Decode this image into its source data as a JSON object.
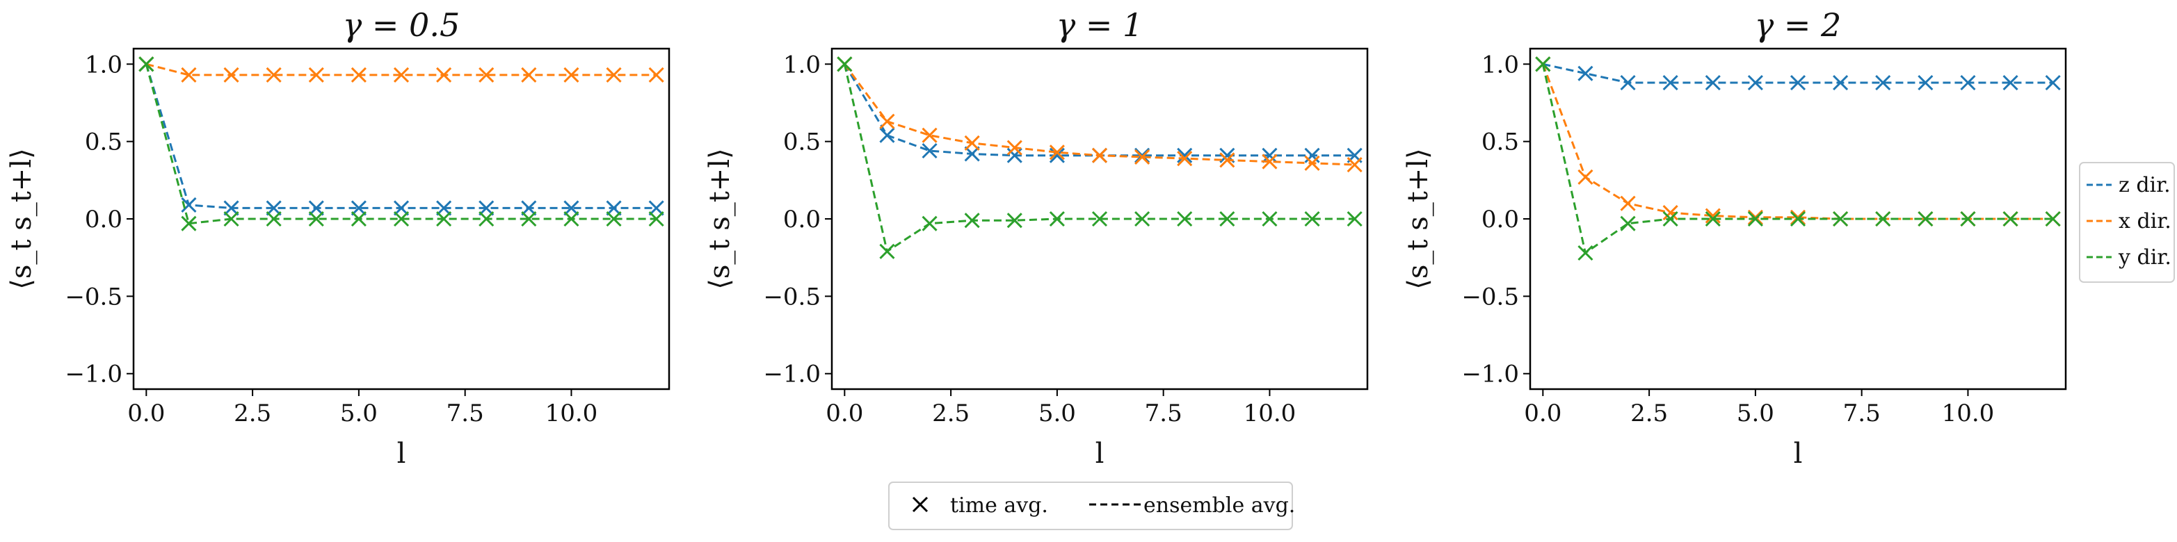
{
  "chart_data": [
    {
      "type": "line",
      "title": "γ = 0.5",
      "xlabel": "l",
      "ylabel": "⟨s_t s_t+l⟩",
      "xlim": [
        -0.3,
        12.3
      ],
      "ylim": [
        -1.1,
        1.1
      ],
      "xticks": [
        0.0,
        2.5,
        5.0,
        7.5,
        10.0
      ],
      "xtick_labels": [
        "0.0",
        "2.5",
        "5.0",
        "7.5",
        "10.0"
      ],
      "yticks": [
        1.0,
        0.5,
        0.0,
        -0.5,
        -1.0
      ],
      "ytick_labels": [
        "1.0",
        "0.5",
        "0.0",
        "−0.5",
        "−1.0"
      ],
      "x": [
        0,
        1,
        2,
        3,
        4,
        5,
        6,
        7,
        8,
        9,
        10,
        11,
        12
      ],
      "series": [
        {
          "name": "z dir.",
          "color": "#1f77b4",
          "values": [
            1.0,
            0.09,
            0.07,
            0.07,
            0.07,
            0.07,
            0.07,
            0.07,
            0.07,
            0.07,
            0.07,
            0.07,
            0.07
          ]
        },
        {
          "name": "x dir.",
          "color": "#ff7f0e",
          "values": [
            1.0,
            0.93,
            0.93,
            0.93,
            0.93,
            0.93,
            0.93,
            0.93,
            0.93,
            0.93,
            0.93,
            0.93,
            0.93
          ]
        },
        {
          "name": "y dir.",
          "color": "#2ca02c",
          "values": [
            1.0,
            -0.03,
            0.0,
            0.0,
            0.0,
            0.0,
            0.0,
            0.0,
            0.0,
            0.0,
            0.0,
            0.0,
            0.0
          ]
        }
      ]
    },
    {
      "type": "line",
      "title": "γ = 1",
      "xlabel": "l",
      "ylabel": "⟨s_t s_t+l⟩",
      "xlim": [
        -0.3,
        12.3
      ],
      "ylim": [
        -1.1,
        1.1
      ],
      "xticks": [
        0.0,
        2.5,
        5.0,
        7.5,
        10.0
      ],
      "xtick_labels": [
        "0.0",
        "2.5",
        "5.0",
        "7.5",
        "10.0"
      ],
      "yticks": [
        1.0,
        0.5,
        0.0,
        -0.5,
        -1.0
      ],
      "ytick_labels": [
        "1.0",
        "0.5",
        "0.0",
        "−0.5",
        "−1.0"
      ],
      "x": [
        0,
        1,
        2,
        3,
        4,
        5,
        6,
        7,
        8,
        9,
        10,
        11,
        12
      ],
      "series": [
        {
          "name": "z dir.",
          "color": "#1f77b4",
          "values": [
            1.0,
            0.54,
            0.44,
            0.42,
            0.41,
            0.41,
            0.41,
            0.41,
            0.41,
            0.41,
            0.41,
            0.41,
            0.41
          ]
        },
        {
          "name": "x dir.",
          "color": "#ff7f0e",
          "values": [
            1.0,
            0.63,
            0.54,
            0.49,
            0.46,
            0.43,
            0.41,
            0.4,
            0.39,
            0.38,
            0.37,
            0.36,
            0.35
          ]
        },
        {
          "name": "y dir.",
          "color": "#2ca02c",
          "values": [
            1.0,
            -0.21,
            -0.03,
            -0.01,
            -0.01,
            0.0,
            0.0,
            0.0,
            0.0,
            0.0,
            0.0,
            0.0,
            0.0
          ]
        }
      ]
    },
    {
      "type": "line",
      "title": "γ = 2",
      "xlabel": "l",
      "ylabel": "⟨s_t s_t+l⟩",
      "xlim": [
        -0.3,
        12.3
      ],
      "ylim": [
        -1.1,
        1.1
      ],
      "xticks": [
        0.0,
        2.5,
        5.0,
        7.5,
        10.0
      ],
      "xtick_labels": [
        "0.0",
        "2.5",
        "5.0",
        "7.5",
        "10.0"
      ],
      "yticks": [
        1.0,
        0.5,
        0.0,
        -0.5,
        -1.0
      ],
      "ytick_labels": [
        "1.0",
        "0.5",
        "0.0",
        "−0.5",
        "−1.0"
      ],
      "x": [
        0,
        1,
        2,
        3,
        4,
        5,
        6,
        7,
        8,
        9,
        10,
        11,
        12
      ],
      "series": [
        {
          "name": "z dir.",
          "color": "#1f77b4",
          "values": [
            1.0,
            0.94,
            0.88,
            0.88,
            0.88,
            0.88,
            0.88,
            0.88,
            0.88,
            0.88,
            0.88,
            0.88,
            0.88
          ]
        },
        {
          "name": "x dir.",
          "color": "#ff7f0e",
          "values": [
            1.0,
            0.27,
            0.1,
            0.04,
            0.02,
            0.01,
            0.01,
            0.0,
            0.0,
            0.0,
            0.0,
            0.0,
            0.0
          ]
        },
        {
          "name": "y dir.",
          "color": "#2ca02c",
          "values": [
            1.0,
            -0.22,
            -0.03,
            0.0,
            0.0,
            0.0,
            0.0,
            0.0,
            0.0,
            0.0,
            0.0,
            0.0,
            0.0
          ]
        }
      ]
    }
  ],
  "series_legend": {
    "placement": "right",
    "entries": [
      {
        "label": "z dir.",
        "color": "#1f77b4"
      },
      {
        "label": "x dir.",
        "color": "#ff7f0e"
      },
      {
        "label": "y dir.",
        "color": "#2ca02c"
      }
    ]
  },
  "style_legend": {
    "placement": "bottom-center",
    "marker_symbol": "✕",
    "marker_label": "time avg.",
    "line_label": "ensemble avg."
  }
}
